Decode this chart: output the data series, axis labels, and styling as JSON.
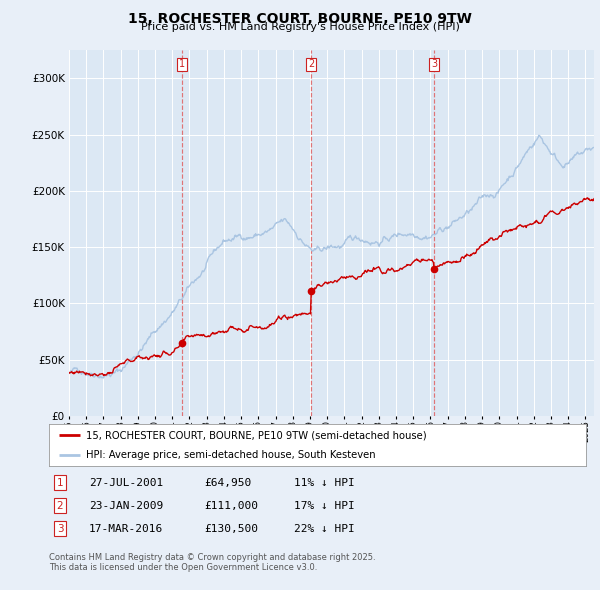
{
  "title": "15, ROCHESTER COURT, BOURNE, PE10 9TW",
  "subtitle": "Price paid vs. HM Land Registry's House Price Index (HPI)",
  "legend_line1": "15, ROCHESTER COURT, BOURNE, PE10 9TW (semi-detached house)",
  "legend_line2": "HPI: Average price, semi-detached house, South Kesteven",
  "footer_line1": "Contains HM Land Registry data © Crown copyright and database right 2025.",
  "footer_line2": "This data is licensed under the Open Government Licence v3.0.",
  "transactions": [
    {
      "num": 1,
      "date": "27-JUL-2001",
      "price": "£64,950",
      "pct": "11% ↓ HPI",
      "year": 2001.57,
      "price_val": 64950
    },
    {
      "num": 2,
      "date": "23-JAN-2009",
      "price": "£111,000",
      "pct": "17% ↓ HPI",
      "year": 2009.07,
      "price_val": 111000
    },
    {
      "num": 3,
      "date": "17-MAR-2016",
      "price": "£130,500",
      "pct": "22% ↓ HPI",
      "year": 2016.21,
      "price_val": 130500
    }
  ],
  "hpi_color": "#aac5e2",
  "price_color": "#cc0000",
  "dashed_color": "#e06060",
  "background_color": "#e8eff8",
  "plot_bg_color": "#dce8f4",
  "ylim": [
    0,
    325000
  ],
  "yticks": [
    0,
    50000,
    100000,
    150000,
    200000,
    250000,
    300000
  ],
  "xmin": 1995.0,
  "xmax": 2025.5
}
